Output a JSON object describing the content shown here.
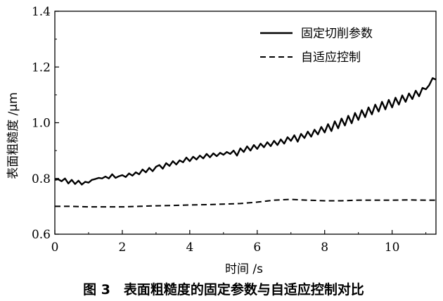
{
  "chart_data": {
    "type": "line",
    "title": "",
    "caption": "图 3　表面粗糙度的固定参数与自适应控制对比",
    "xlabel": "时间 /s",
    "ylabel": "表面粗糙度 /μm",
    "xlim": [
      0,
      11.3
    ],
    "ylim": [
      0.6,
      1.4
    ],
    "xticks": [
      0,
      2,
      4,
      6,
      8,
      10
    ],
    "yticks": [
      0.6,
      0.8,
      1.0,
      1.2,
      1.4
    ],
    "xtick_labels": [
      "0",
      "2",
      "4",
      "6",
      "8",
      "10"
    ],
    "ytick_labels": [
      "0.6",
      "0.8",
      "1.0",
      "1.2",
      "1.4"
    ],
    "grid": false,
    "legend_position": "top-right",
    "series": [
      {
        "name": "固定切削参数",
        "style": "solid",
        "color": "#000000",
        "x": [
          0.0,
          0.1,
          0.2,
          0.3,
          0.4,
          0.5,
          0.6,
          0.7,
          0.8,
          0.9,
          1.0,
          1.1,
          1.2,
          1.3,
          1.4,
          1.5,
          1.6,
          1.7,
          1.8,
          1.9,
          2.0,
          2.1,
          2.2,
          2.3,
          2.4,
          2.5,
          2.6,
          2.7,
          2.8,
          2.9,
          3.0,
          3.1,
          3.2,
          3.3,
          3.4,
          3.5,
          3.6,
          3.7,
          3.8,
          3.9,
          4.0,
          4.1,
          4.2,
          4.3,
          4.4,
          4.5,
          4.6,
          4.7,
          4.8,
          4.9,
          5.0,
          5.1,
          5.2,
          5.3,
          5.4,
          5.5,
          5.6,
          5.7,
          5.8,
          5.9,
          6.0,
          6.1,
          6.2,
          6.3,
          6.4,
          6.5,
          6.6,
          6.7,
          6.8,
          6.9,
          7.0,
          7.1,
          7.2,
          7.3,
          7.4,
          7.5,
          7.6,
          7.7,
          7.8,
          7.9,
          8.0,
          8.1,
          8.2,
          8.3,
          8.4,
          8.5,
          8.6,
          8.7,
          8.8,
          8.9,
          9.0,
          9.1,
          9.2,
          9.3,
          9.4,
          9.5,
          9.6,
          9.7,
          9.8,
          9.9,
          10.0,
          10.1,
          10.2,
          10.3,
          10.4,
          10.5,
          10.6,
          10.7,
          10.8,
          10.9,
          11.0,
          11.1,
          11.2,
          11.3
        ],
        "y": [
          0.795,
          0.797,
          0.79,
          0.8,
          0.782,
          0.795,
          0.78,
          0.792,
          0.778,
          0.788,
          0.785,
          0.795,
          0.798,
          0.802,
          0.8,
          0.807,
          0.8,
          0.815,
          0.802,
          0.808,
          0.812,
          0.805,
          0.818,
          0.81,
          0.822,
          0.815,
          0.832,
          0.822,
          0.838,
          0.826,
          0.842,
          0.848,
          0.835,
          0.855,
          0.845,
          0.862,
          0.85,
          0.865,
          0.858,
          0.875,
          0.862,
          0.878,
          0.868,
          0.882,
          0.872,
          0.888,
          0.876,
          0.89,
          0.88,
          0.892,
          0.885,
          0.895,
          0.888,
          0.9,
          0.882,
          0.908,
          0.895,
          0.915,
          0.9,
          0.92,
          0.906,
          0.925,
          0.912,
          0.93,
          0.916,
          0.935,
          0.92,
          0.94,
          0.925,
          0.948,
          0.935,
          0.955,
          0.932,
          0.96,
          0.945,
          0.968,
          0.95,
          0.975,
          0.958,
          0.985,
          0.965,
          0.995,
          0.97,
          1.005,
          0.98,
          1.015,
          0.99,
          1.025,
          0.998,
          1.035,
          1.01,
          1.045,
          1.02,
          1.055,
          1.03,
          1.065,
          1.04,
          1.075,
          1.048,
          1.082,
          1.055,
          1.09,
          1.065,
          1.098,
          1.075,
          1.105,
          1.085,
          1.115,
          1.095,
          1.125,
          1.12,
          1.135,
          1.16,
          1.155
        ]
      },
      {
        "name": "自适应控制",
        "style": "dashed",
        "color": "#000000",
        "x": [
          0.0,
          0.5,
          1.0,
          1.5,
          2.0,
          2.5,
          3.0,
          3.5,
          4.0,
          4.5,
          5.0,
          5.5,
          6.0,
          6.5,
          7.0,
          7.5,
          8.0,
          8.5,
          9.0,
          9.5,
          10.0,
          10.5,
          11.0,
          11.3
        ],
        "y": [
          0.7,
          0.7,
          0.698,
          0.698,
          0.698,
          0.7,
          0.702,
          0.703,
          0.705,
          0.706,
          0.708,
          0.71,
          0.715,
          0.722,
          0.725,
          0.722,
          0.72,
          0.72,
          0.722,
          0.722,
          0.722,
          0.723,
          0.722,
          0.722
        ]
      }
    ]
  }
}
